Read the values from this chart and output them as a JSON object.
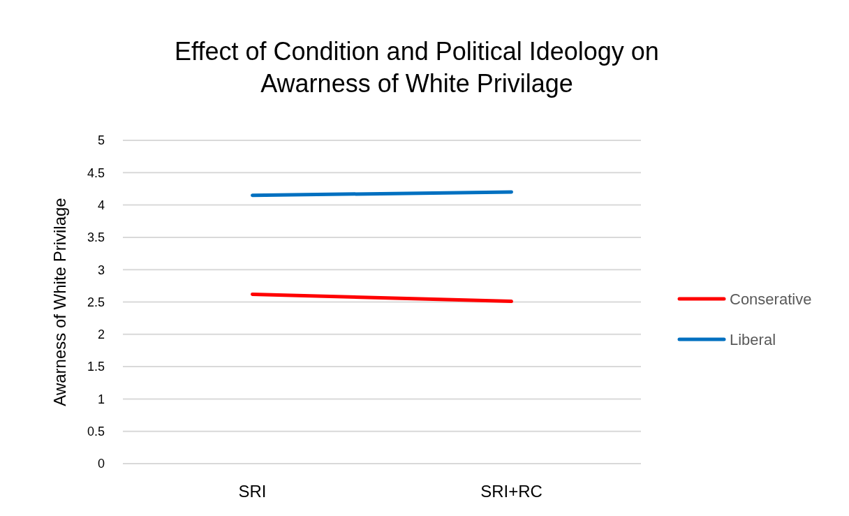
{
  "chart_data": {
    "type": "line",
    "title": "Effect of Condition and Political Ideology on Awarness of White Privilage",
    "ylabel": "Awarness of White Privilage",
    "categories": [
      "SRI",
      "SRI+RC"
    ],
    "series": [
      {
        "name": "Conserative",
        "color": "#ff0000",
        "values": [
          2.62,
          2.51
        ]
      },
      {
        "name": "Liberal",
        "color": "#0070c0",
        "values": [
          4.15,
          4.2
        ]
      }
    ],
    "ylim": [
      0,
      5
    ],
    "yticks": [
      0,
      0.5,
      1,
      1.5,
      2,
      2.5,
      3,
      3.5,
      4,
      4.5,
      5
    ],
    "grid": "y",
    "legend": "right",
    "marker": "none"
  }
}
